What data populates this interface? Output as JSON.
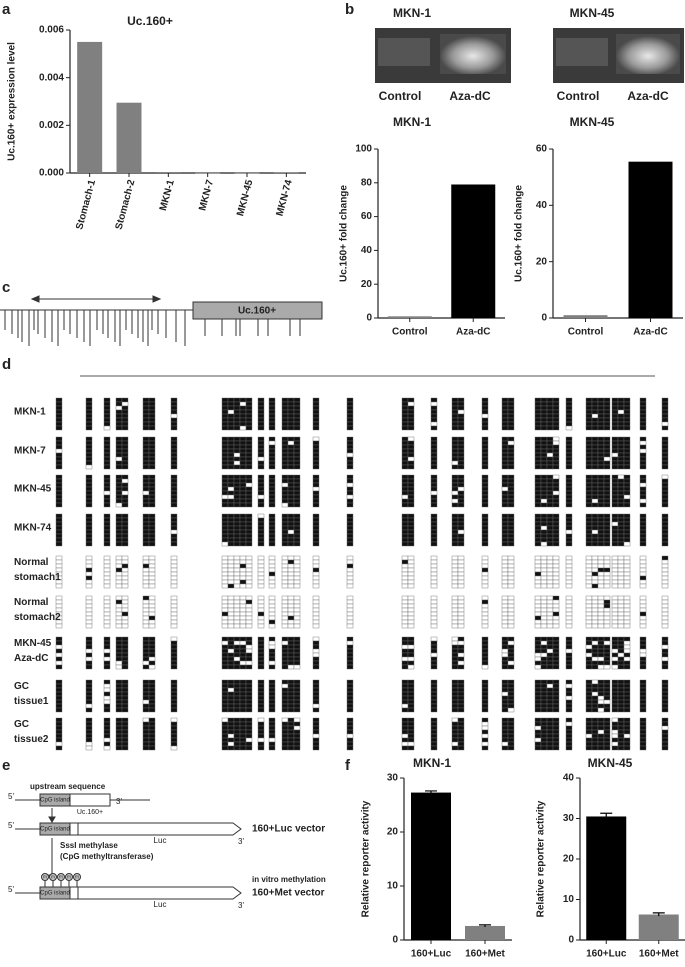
{
  "panels": [
    "a",
    "b",
    "c",
    "d",
    "e",
    "f"
  ],
  "gel": {
    "titles": [
      "MKN-1",
      "MKN-45"
    ],
    "lanes": [
      "Control",
      "Aza-dC"
    ]
  },
  "diagram_c": {
    "box": "Uc.160+"
  },
  "bisulfite": {
    "rows": [
      {
        "lines": [
          "MKN-1"
        ]
      },
      {
        "lines": [
          "MKN-7"
        ]
      },
      {
        "lines": [
          "MKN-45"
        ]
      },
      {
        "lines": [
          "MKN-74"
        ]
      },
      {
        "lines": [
          "Normal",
          "stomach1"
        ]
      },
      {
        "lines": [
          "Normal",
          "stomach2"
        ]
      },
      {
        "lines": [
          "MKN-45",
          "Aza-dC"
        ]
      },
      {
        "lines": [
          "GC",
          "tissue1"
        ]
      },
      {
        "lines": [
          "GC",
          "tissue2"
        ]
      }
    ]
  },
  "diagram_e": {
    "five_prime": "5'",
    "three_prime": "3'",
    "upstream": "upstream sequence",
    "cpg": "CpG island",
    "gene": "Uc.160+",
    "luc": "Luc",
    "vector1": "160+Luc vector",
    "enzyme": "SssI methylase",
    "enzyme_note": "(CpG methyltransferase)",
    "method": "in vitro methylation",
    "vector2": "160+Met vector",
    "m": "m"
  },
  "chart_data": [
    {
      "type": "bar",
      "title": "Uc.160+",
      "ylabel": "Uc.160+ expression level",
      "categories": [
        "Stomach-1",
        "Stomach-2",
        "MKN-1",
        "MKN-7",
        "MKN-45",
        "MKN-74"
      ],
      "values": [
        0.0055,
        0.00295,
        4e-05,
        1e-05,
        1e-05,
        3e-05
      ],
      "color": "#808080",
      "ylim": [
        0,
        0.006
      ],
      "yticks": [
        {
          "value": 0,
          "label": "0.000"
        },
        {
          "value": 0.002,
          "label": "0.002"
        },
        {
          "value": 0.004,
          "label": "0.004"
        },
        {
          "value": 0.006,
          "label": "0.006"
        }
      ]
    },
    {
      "type": "bar",
      "title": "MKN-1",
      "ylabel": "Uc.160+ fold change",
      "categories": [
        "Control",
        "Aza-dC"
      ],
      "values": [
        1,
        79
      ],
      "colors": [
        "#808080",
        "#000000"
      ],
      "ylim": [
        0,
        100
      ],
      "yticks": [
        0,
        20,
        40,
        60,
        80,
        100
      ]
    },
    {
      "type": "bar",
      "title": "MKN-45",
      "ylabel": "Uc.160+ fold change",
      "categories": [
        "Control",
        "Aza-dC"
      ],
      "values": [
        1,
        55.5
      ],
      "colors": [
        "#808080",
        "#000000"
      ],
      "ylim": [
        0,
        60
      ],
      "yticks": [
        0,
        20,
        40,
        60
      ]
    },
    {
      "type": "bar",
      "title": "MKN-1",
      "ylabel": "Relative reporter activity",
      "categories": [
        "160+Luc",
        "160+Met"
      ],
      "values": [
        27.3,
        2.6
      ],
      "errors": [
        0.3,
        0.2
      ],
      "colors": [
        "#000000",
        "#808080"
      ],
      "ylim": [
        0,
        30
      ],
      "yticks": [
        0,
        10,
        20,
        30
      ]
    },
    {
      "type": "bar",
      "title": "MKN-45",
      "ylabel": "Relative reporter activity",
      "categories": [
        "160+Luc",
        "160+Met"
      ],
      "values": [
        30.5,
        6.3
      ],
      "errors": [
        0.8,
        0.4
      ],
      "colors": [
        "#000000",
        "#808080"
      ],
      "ylim": [
        0,
        40
      ],
      "yticks": [
        0,
        10,
        20,
        30,
        40
      ]
    }
  ]
}
